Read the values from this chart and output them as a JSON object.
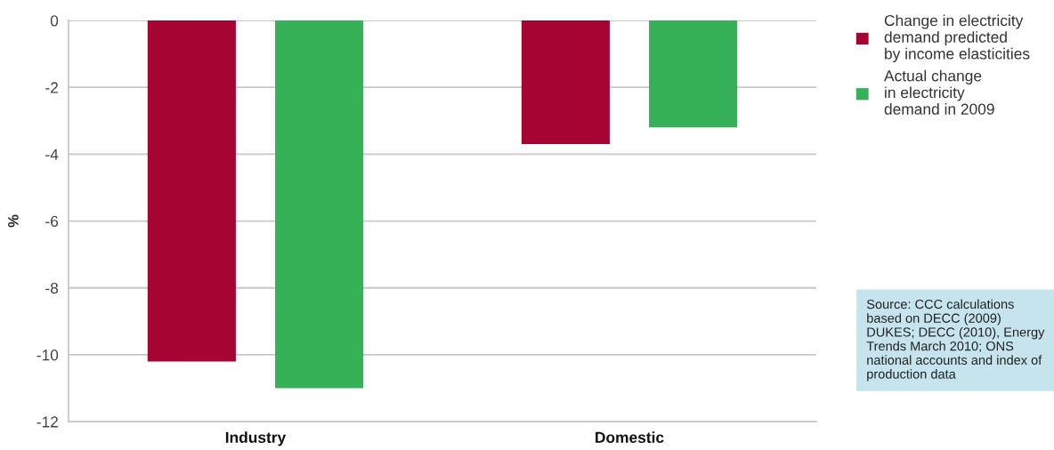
{
  "chart_data": {
    "type": "bar",
    "ylabel": "%",
    "categories": [
      "Industry",
      "Domestic"
    ],
    "series": [
      {
        "name": "Change in electricity\ndemand predicted\nby income elasticities",
        "color": "#a50533",
        "values": [
          -10.2,
          -3.7
        ]
      },
      {
        "name": "Actual change\nin electricity\ndemand in 2009",
        "color": "#36b158",
        "values": [
          -11.0,
          -3.2
        ]
      }
    ],
    "ylim": [
      -12,
      0
    ],
    "yticks": [
      -12,
      -10,
      -8,
      -6,
      -4,
      -2,
      0
    ],
    "grid": "y",
    "legend": "right",
    "annotations": [
      "Source: CCC calculations based on DECC (2009) DUKES; DECC (2010), Energy Trends March 2010; ONS national accounts and index of production data"
    ]
  }
}
